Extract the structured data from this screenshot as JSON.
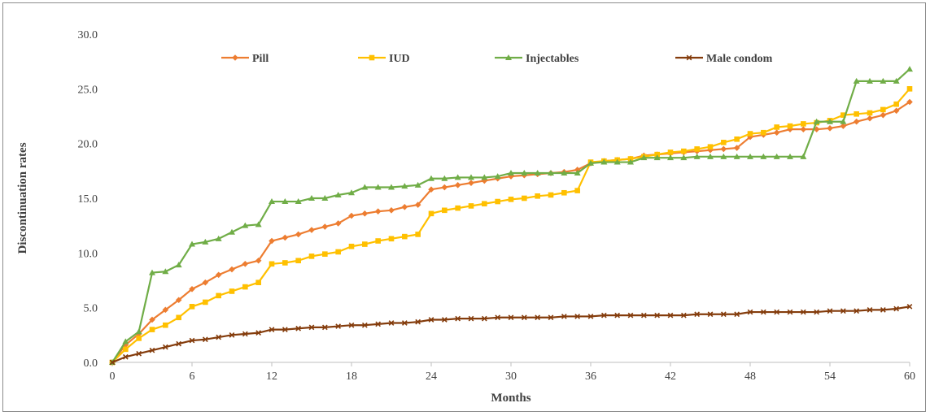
{
  "chart_data": {
    "type": "line",
    "title": "",
    "xlabel": "Months",
    "ylabel": "Discontinuation rates",
    "xlim": [
      0,
      60
    ],
    "ylim": [
      0,
      30
    ],
    "x_ticks": [
      "0",
      "6",
      "12",
      "18",
      "24",
      "30",
      "36",
      "42",
      "48",
      "54",
      "60"
    ],
    "y_ticks": [
      "0.0",
      "5.0",
      "10.0",
      "15.0",
      "20.0",
      "25.0",
      "30.0"
    ],
    "grid": false,
    "legend_position": "top",
    "x": [
      0,
      1,
      2,
      3,
      4,
      5,
      6,
      7,
      8,
      9,
      10,
      11,
      12,
      13,
      14,
      15,
      16,
      17,
      18,
      19,
      20,
      21,
      22,
      23,
      24,
      25,
      26,
      27,
      28,
      29,
      30,
      31,
      32,
      33,
      34,
      35,
      36,
      37,
      38,
      39,
      40,
      41,
      42,
      43,
      44,
      45,
      46,
      47,
      48,
      49,
      50,
      51,
      52,
      53,
      54,
      55,
      56,
      57,
      58,
      59,
      60
    ],
    "series": [
      {
        "name": "Pill",
        "color": "#ED7D31",
        "marker": "diamond",
        "values": [
          0.0,
          1.6,
          2.6,
          3.9,
          4.8,
          5.7,
          6.7,
          7.3,
          8.0,
          8.5,
          9.0,
          9.3,
          11.1,
          11.4,
          11.7,
          12.1,
          12.4,
          12.7,
          13.4,
          13.6,
          13.8,
          13.9,
          14.2,
          14.4,
          15.8,
          16.0,
          16.2,
          16.4,
          16.6,
          16.8,
          17.0,
          17.1,
          17.2,
          17.3,
          17.4,
          17.6,
          18.2,
          18.4,
          18.5,
          18.6,
          18.9,
          19.0,
          19.1,
          19.2,
          19.3,
          19.4,
          19.5,
          19.6,
          20.6,
          20.8,
          21.0,
          21.3,
          21.3,
          21.3,
          21.4,
          21.6,
          22.0,
          22.3,
          22.6,
          23.0,
          23.8
        ]
      },
      {
        "name": "IUD",
        "color": "#FFC000",
        "marker": "square",
        "values": [
          0.0,
          1.2,
          2.2,
          3.0,
          3.4,
          4.1,
          5.1,
          5.5,
          6.1,
          6.5,
          6.9,
          7.3,
          9.0,
          9.1,
          9.3,
          9.7,
          9.9,
          10.1,
          10.6,
          10.8,
          11.1,
          11.3,
          11.5,
          11.7,
          13.6,
          13.9,
          14.1,
          14.3,
          14.5,
          14.7,
          14.9,
          15.0,
          15.2,
          15.3,
          15.5,
          15.7,
          18.3,
          18.4,
          18.5,
          18.6,
          18.8,
          19.0,
          19.2,
          19.3,
          19.5,
          19.7,
          20.1,
          20.4,
          20.9,
          21.0,
          21.5,
          21.6,
          21.8,
          21.9,
          22.1,
          22.6,
          22.7,
          22.8,
          23.1,
          23.6,
          25.0
        ]
      },
      {
        "name": "Injectables",
        "color": "#70AD47",
        "marker": "triangle",
        "values": [
          0.0,
          1.9,
          2.8,
          8.2,
          8.3,
          8.9,
          10.8,
          11.0,
          11.3,
          11.9,
          12.5,
          12.6,
          14.7,
          14.7,
          14.7,
          15.0,
          15.0,
          15.3,
          15.5,
          16.0,
          16.0,
          16.0,
          16.1,
          16.2,
          16.8,
          16.8,
          16.9,
          16.9,
          16.9,
          17.0,
          17.3,
          17.3,
          17.3,
          17.3,
          17.3,
          17.3,
          18.2,
          18.3,
          18.3,
          18.3,
          18.7,
          18.7,
          18.7,
          18.7,
          18.8,
          18.8,
          18.8,
          18.8,
          18.8,
          18.8,
          18.8,
          18.8,
          18.8,
          22.0,
          22.0,
          22.0,
          25.7,
          25.7,
          25.7,
          25.7,
          26.8
        ]
      },
      {
        "name": "Male condom",
        "color": "#843C0C",
        "marker": "x",
        "values": [
          0.0,
          0.5,
          0.8,
          1.1,
          1.4,
          1.7,
          2.0,
          2.1,
          2.3,
          2.5,
          2.6,
          2.7,
          3.0,
          3.0,
          3.1,
          3.2,
          3.2,
          3.3,
          3.4,
          3.4,
          3.5,
          3.6,
          3.6,
          3.7,
          3.9,
          3.9,
          4.0,
          4.0,
          4.0,
          4.1,
          4.1,
          4.1,
          4.1,
          4.1,
          4.2,
          4.2,
          4.2,
          4.3,
          4.3,
          4.3,
          4.3,
          4.3,
          4.3,
          4.3,
          4.4,
          4.4,
          4.4,
          4.4,
          4.6,
          4.6,
          4.6,
          4.6,
          4.6,
          4.6,
          4.7,
          4.7,
          4.7,
          4.8,
          4.8,
          4.9,
          5.1
        ]
      }
    ]
  }
}
